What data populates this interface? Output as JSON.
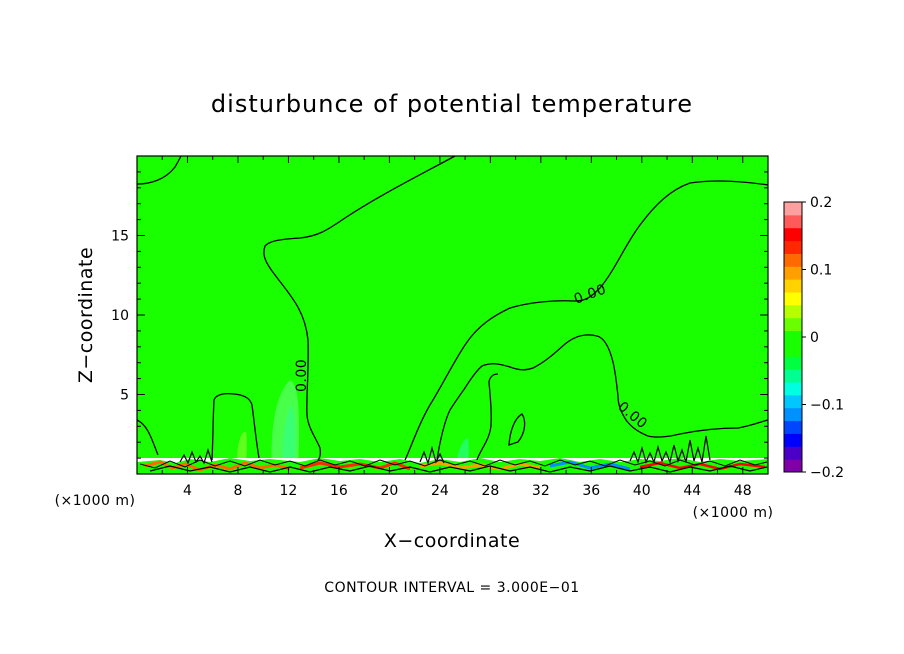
{
  "chart_data": {
    "type": "heatmap",
    "title": "disturbunce of potential temperature",
    "xlabel": "X−coordinate",
    "ylabel": "Z−coordinate",
    "x_unit_left": "(×1000 m)",
    "x_unit_right": "(×1000 m)",
    "xlim": [
      0,
      50
    ],
    "ylim": [
      0,
      20
    ],
    "x_ticks": [
      4,
      8,
      12,
      16,
      20,
      24,
      28,
      32,
      36,
      40,
      44,
      48
    ],
    "y_ticks": [
      5,
      10,
      15
    ],
    "contour_interval_note": "CONTOUR INTERVAL = 3.000E−01",
    "contour_labels": [
      "0.00",
      "0.00",
      "0.00"
    ],
    "colorbar": {
      "range": [
        -0.2,
        0.2
      ],
      "tick_labels": [
        "0.2",
        "0.1",
        "0",
        "−0.1",
        "−0.2"
      ],
      "tick_values": [
        0.2,
        0.1,
        0,
        -0.1,
        -0.2
      ],
      "colors": [
        "#7f00a8",
        "#4b00c8",
        "#0000ff",
        "#0046ff",
        "#0090ff",
        "#00c8ff",
        "#00ffe0",
        "#00ff90",
        "#00ff40",
        "#1aff00",
        "#1aff00",
        "#6aff00",
        "#b4ff00",
        "#ffff00",
        "#ffd200",
        "#ffa000",
        "#ff6a00",
        "#ff2800",
        "#ff0000",
        "#ff5a5a",
        "#ffa0a0"
      ]
    },
    "background_field": "#1aff00",
    "grid": false
  }
}
